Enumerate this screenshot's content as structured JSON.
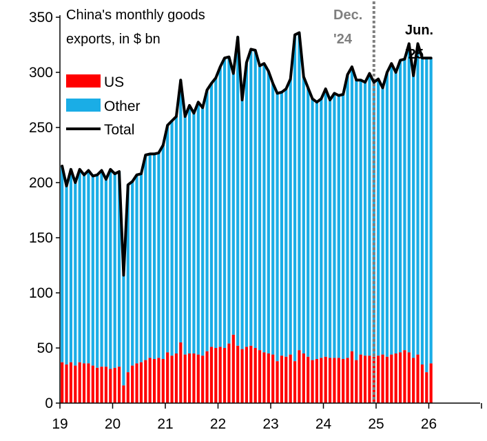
{
  "colors": {
    "us": "#ff0000",
    "other": "#1aade6",
    "total": "#000000",
    "marker": "#7f7f7f",
    "annotation_dec": "#7f7f7f",
    "annotation_jun": "#000000"
  },
  "chart_data": {
    "type": "bar",
    "stacked": true,
    "title": [
      "China's monthly goods",
      "exports, in $ bn"
    ],
    "xlabel": "",
    "ylabel": "",
    "ylim": [
      0,
      350
    ],
    "xlim": [
      2019,
      2027
    ],
    "y_ticks": [
      0,
      50,
      100,
      150,
      200,
      250,
      300,
      350
    ],
    "y_tick_labels": [
      "0",
      "50",
      "100",
      "150",
      "200",
      "250",
      "300",
      "350"
    ],
    "x_ticks": [
      2019,
      2020,
      2021,
      2022,
      2023,
      2024,
      2025,
      2026
    ],
    "x_tick_labels": [
      "19",
      "20",
      "21",
      "22",
      "23",
      "24",
      "25",
      "26"
    ],
    "x_start": "2019-01",
    "legend": {
      "placement": "upper-left",
      "entries": [
        "US",
        "Other",
        "Total"
      ]
    },
    "annotations": [
      {
        "text_lines": [
          "Dec.",
          "'24"
        ],
        "x": "2024-12"
      },
      {
        "text_lines": [
          "Jun.",
          "'25"
        ],
        "x": "2025-06"
      }
    ],
    "vertical_marker": {
      "x": "2024-12",
      "style": "dotted"
    },
    "series": [
      {
        "name": "US",
        "kind": "bar",
        "values": [
          37,
          35,
          37,
          34,
          37,
          36,
          36,
          34,
          32,
          33,
          33,
          31,
          32,
          33,
          16,
          28,
          34,
          36,
          37,
          39,
          41,
          40,
          41,
          40,
          46,
          43,
          45,
          55,
          44,
          45,
          45,
          44,
          43,
          47,
          51,
          50,
          51,
          50,
          54,
          62,
          52,
          49,
          51,
          52,
          50,
          48,
          46,
          45,
          44,
          38,
          43,
          42,
          44,
          38,
          48,
          45,
          42,
          39,
          40,
          41,
          42,
          41,
          41,
          41,
          40,
          41,
          47,
          39,
          44,
          43,
          43,
          42,
          43,
          44,
          42,
          44,
          45,
          46,
          48,
          46,
          41,
          44,
          35,
          28,
          36
        ]
      },
      {
        "name": "Other",
        "kind": "bar",
        "values": [
          178,
          162,
          175,
          166,
          175,
          171,
          175,
          172,
          175,
          178,
          170,
          181,
          176,
          177,
          100,
          170,
          167,
          171,
          171,
          186,
          185,
          186,
          186,
          194,
          206,
          213,
          215,
          238,
          216,
          225,
          218,
          229,
          225,
          237,
          239,
          245,
          254,
          263,
          260,
          237,
          280,
          226,
          258,
          269,
          270,
          258,
          262,
          256,
          246,
          243,
          239,
          243,
          250,
          296,
          288,
          251,
          244,
          237,
          233,
          235,
          243,
          234,
          240,
          238,
          240,
          257,
          258,
          254,
          249,
          248,
          256,
          249,
          251,
          242,
          258,
          264,
          255,
          265,
          264,
          280,
          256,
          282,
          278,
          285,
          277
        ]
      },
      {
        "name": "Total",
        "kind": "line",
        "values": [
          215,
          197,
          212,
          200,
          212,
          207,
          211,
          206,
          207,
          211,
          203,
          212,
          208,
          210,
          116,
          198,
          201,
          207,
          208,
          225,
          226,
          226,
          227,
          234,
          252,
          256,
          260,
          293,
          260,
          270,
          263,
          273,
          268,
          284,
          290,
          295,
          305,
          313,
          314,
          299,
          332,
          275,
          309,
          321,
          320,
          306,
          308,
          301,
          290,
          281,
          282,
          285,
          294,
          334,
          336,
          296,
          286,
          276,
          273,
          276,
          285,
          275,
          281,
          279,
          280,
          298,
          305,
          293,
          293,
          291,
          299,
          291,
          294,
          286,
          300,
          308,
          300,
          311,
          312,
          326,
          297,
          326,
          313,
          313,
          313
        ]
      }
    ]
  }
}
